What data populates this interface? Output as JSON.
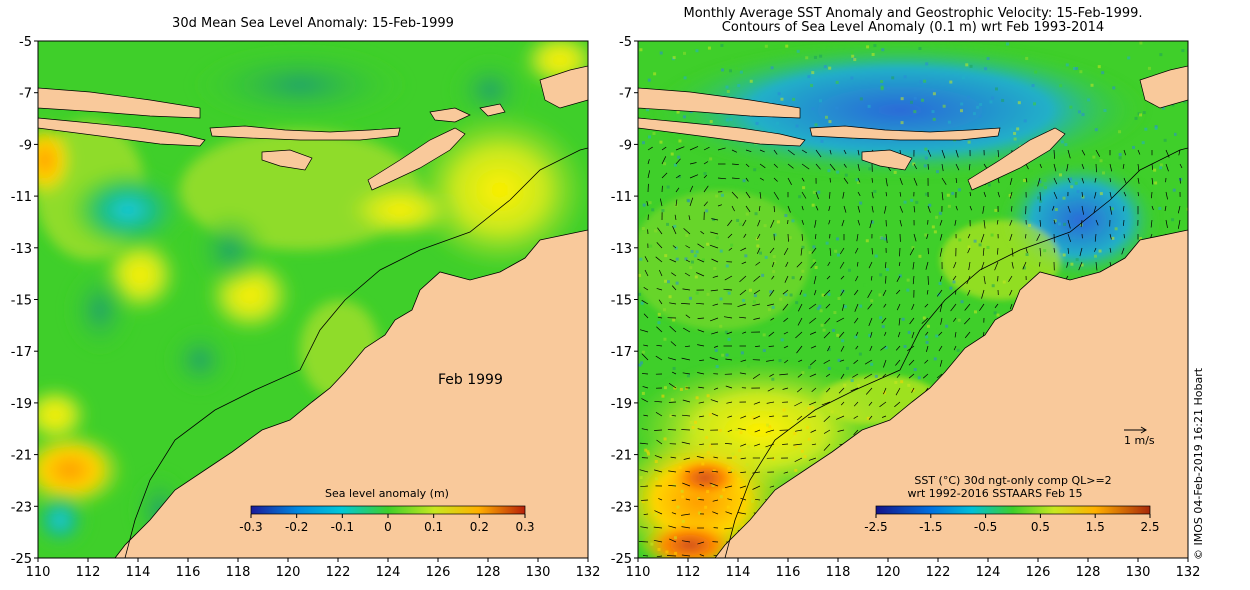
{
  "left_panel": {
    "title": "30d Mean Sea Level Anomaly: 15-Feb-1999",
    "annotation": "Feb 1999",
    "colorbar": {
      "label": "Sea level anomaly (m)",
      "ticks": [
        "-0.3",
        "-0.2",
        "-0.1",
        "0",
        "0.1",
        "0.2",
        "0.3"
      ],
      "range": [
        -0.3,
        0.3
      ]
    }
  },
  "right_panel": {
    "title_line1": "Monthly Average SST Anomaly  and Geostrophic Velocity: 15-Feb-1999.",
    "title_line2": "Contours of Sea Level Anomaly (0.1 m) wrt Feb 1993-2014",
    "vector_scale_label": "1 m/s",
    "legend_line1": "SST (°C) 30d ngt-only comp QL>=2",
    "legend_line2": "wrt 1992-2016 SSTAARS Feb 15",
    "colorbar": {
      "ticks": [
        "-2.5",
        "-1.5",
        "-0.5",
        "0.5",
        "1.5",
        "2.5"
      ],
      "range": [
        -2.5,
        2.5
      ]
    }
  },
  "axes": {
    "lon_ticks": [
      "110",
      "112",
      "114",
      "116",
      "118",
      "120",
      "122",
      "124",
      "126",
      "128",
      "130",
      "132"
    ],
    "lat_ticks": [
      "-5",
      "-7",
      "-9",
      "-11",
      "-13",
      "-15",
      "-17",
      "-19",
      "-21",
      "-23",
      "-25"
    ],
    "lon_range": [
      110,
      132
    ],
    "lat_range": [
      -25,
      -5
    ]
  },
  "credit": "© IMOS 04-Feb-2019 16:21 Hobart",
  "colors": {
    "land": "#f9c99b",
    "anomaly_zero": "#3fcf2a",
    "anomaly_low": "#00bcd8",
    "anomaly_high": "#ffe200",
    "sst_positive": "#ff8a00"
  }
}
